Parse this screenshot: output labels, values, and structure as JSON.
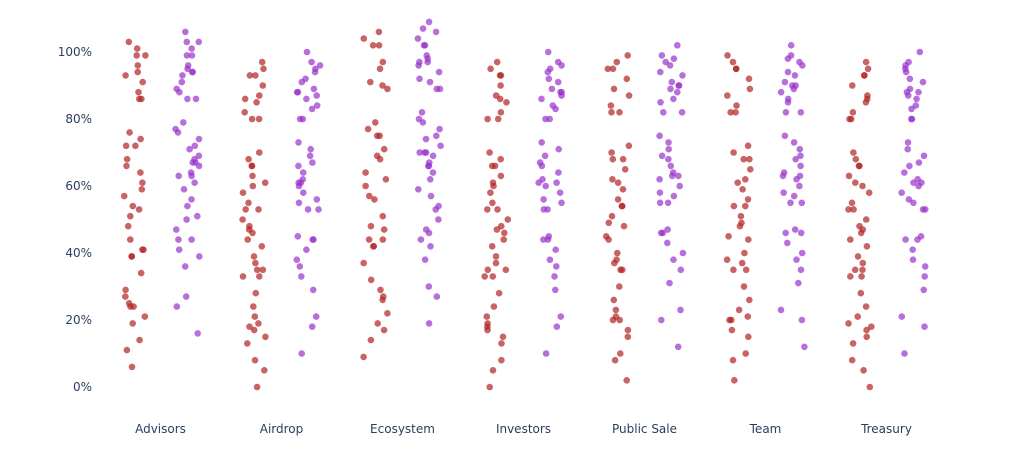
{
  "chart_data": {
    "type": "scatter",
    "title": "",
    "xlabel": "",
    "ylabel": "",
    "categories": [
      "Advisors",
      "Airdrop",
      "Ecosystem",
      "Investors",
      "Public Sale",
      "Team",
      "Treasury"
    ],
    "y_ticks": [
      "0%",
      "20%",
      "40%",
      "60%",
      "80%",
      "100%"
    ],
    "y_tick_values": [
      0,
      20,
      40,
      60,
      80,
      100
    ],
    "ylim": [
      -4,
      111
    ],
    "grid": false,
    "legend": "none",
    "series": [
      {
        "color": "#b22222",
        "values": {
          "Advisors": [
            101,
            103,
            99,
            99,
            96,
            94,
            93,
            91,
            88,
            86,
            86,
            76,
            74,
            72,
            72,
            68,
            66,
            64,
            61,
            59,
            57,
            54,
            53,
            51,
            48,
            44,
            41,
            41,
            39,
            39,
            34,
            29,
            27,
            25,
            24,
            24,
            21,
            19,
            14,
            11,
            6
          ],
          "Airdrop": [
            95,
            97,
            93,
            93,
            90,
            87,
            86,
            85,
            82,
            80,
            80,
            70,
            68,
            66,
            66,
            63,
            61,
            60,
            58,
            55,
            53,
            53,
            50,
            48,
            47,
            46,
            44,
            42,
            39,
            37,
            35,
            35,
            33,
            33,
            28,
            24,
            21,
            19,
            18,
            17,
            15,
            13,
            8,
            5,
            0
          ],
          "Ecosystem": [
            104,
            106,
            102,
            102,
            97,
            95,
            91,
            90,
            89,
            79,
            77,
            75,
            75,
            71,
            69,
            68,
            64,
            62,
            60,
            57,
            56,
            51,
            48,
            47,
            44,
            44,
            42,
            42,
            37,
            32,
            29,
            27,
            26,
            22,
            19,
            17,
            14,
            9
          ],
          "Investors": [
            95,
            97,
            93,
            93,
            90,
            87,
            86,
            85,
            82,
            80,
            80,
            70,
            68,
            66,
            66,
            63,
            61,
            60,
            58,
            55,
            53,
            53,
            50,
            48,
            47,
            46,
            44,
            42,
            39,
            37,
            35,
            35,
            33,
            33,
            28,
            24,
            21,
            19,
            18,
            17,
            15,
            13,
            8,
            5,
            0
          ],
          "Public Sale": [
            97,
            99,
            95,
            95,
            92,
            89,
            87,
            84,
            82,
            82,
            72,
            70,
            68,
            68,
            65,
            62,
            61,
            59,
            56,
            54,
            54,
            51,
            49,
            48,
            45,
            44,
            40,
            38,
            37,
            35,
            35,
            30,
            26,
            23,
            21,
            20,
            20,
            17,
            15,
            10,
            8,
            2
          ],
          "Team": [
            97,
            99,
            95,
            95,
            92,
            89,
            87,
            84,
            82,
            82,
            72,
            70,
            68,
            68,
            65,
            62,
            61,
            59,
            56,
            54,
            54,
            51,
            49,
            48,
            45,
            44,
            40,
            38,
            37,
            35,
            35,
            30,
            26,
            23,
            21,
            20,
            20,
            17,
            15,
            10,
            8,
            2
          ],
          "Treasury": [
            95,
            97,
            93,
            93,
            90,
            87,
            86,
            85,
            82,
            80,
            80,
            70,
            68,
            66,
            66,
            63,
            61,
            60,
            58,
            55,
            53,
            53,
            50,
            48,
            47,
            46,
            44,
            42,
            39,
            37,
            35,
            35,
            33,
            33,
            28,
            24,
            21,
            19,
            18,
            17,
            15,
            13,
            8,
            5,
            0
          ]
        }
      },
      {
        "color": "#9932cc",
        "values": {
          "Advisors": [
            106,
            103,
            103,
            101,
            99,
            99,
            96,
            95,
            94,
            94,
            93,
            91,
            89,
            88,
            86,
            86,
            79,
            77,
            76,
            74,
            72,
            71,
            69,
            68,
            67,
            67,
            66,
            64,
            63,
            63,
            61,
            59,
            56,
            54,
            51,
            50,
            47,
            44,
            44,
            41,
            39,
            36,
            27,
            24,
            16
          ],
          "Airdrop": [
            100,
            97,
            96,
            95,
            94,
            92,
            91,
            89,
            88,
            88,
            87,
            86,
            84,
            83,
            80,
            80,
            73,
            71,
            69,
            67,
            66,
            64,
            62,
            61,
            61,
            60,
            58,
            56,
            55,
            53,
            53,
            45,
            44,
            44,
            41,
            38,
            36,
            33,
            29,
            21,
            18,
            10
          ],
          "Ecosystem": [
            109,
            107,
            106,
            104,
            102,
            102,
            99,
            98,
            97,
            97,
            96,
            94,
            92,
            91,
            89,
            89,
            82,
            80,
            79,
            77,
            75,
            74,
            72,
            70,
            70,
            70,
            69,
            67,
            66,
            66,
            64,
            62,
            59,
            57,
            54,
            53,
            50,
            47,
            46,
            44,
            42,
            38,
            30,
            27,
            19
          ],
          "Investors": [
            100,
            97,
            96,
            95,
            94,
            92,
            91,
            89,
            88,
            88,
            87,
            86,
            84,
            83,
            80,
            80,
            73,
            71,
            69,
            67,
            66,
            64,
            62,
            61,
            61,
            60,
            58,
            56,
            55,
            53,
            53,
            45,
            44,
            44,
            41,
            38,
            36,
            33,
            29,
            21,
            18,
            10
          ],
          "Public Sale": [
            102,
            99,
            98,
            97,
            96,
            94,
            93,
            91,
            90,
            90,
            89,
            88,
            86,
            85,
            82,
            82,
            75,
            73,
            71,
            69,
            68,
            66,
            64,
            63,
            63,
            62,
            60,
            58,
            57,
            55,
            55,
            47,
            46,
            46,
            43,
            40,
            38,
            35,
            31,
            23,
            20,
            12
          ],
          "Team": [
            102,
            99,
            98,
            97,
            96,
            94,
            93,
            91,
            90,
            90,
            89,
            88,
            86,
            85,
            82,
            82,
            75,
            73,
            71,
            69,
            68,
            66,
            64,
            63,
            63,
            62,
            60,
            58,
            57,
            55,
            55,
            47,
            46,
            46,
            43,
            40,
            38,
            35,
            31,
            23,
            20,
            12
          ],
          "Treasury": [
            100,
            97,
            96,
            95,
            94,
            92,
            91,
            89,
            88,
            88,
            87,
            86,
            84,
            83,
            80,
            80,
            73,
            71,
            69,
            67,
            66,
            64,
            62,
            61,
            61,
            60,
            58,
            56,
            55,
            53,
            53,
            45,
            44,
            44,
            41,
            38,
            36,
            33,
            29,
            21,
            18,
            10
          ]
        }
      }
    ]
  }
}
